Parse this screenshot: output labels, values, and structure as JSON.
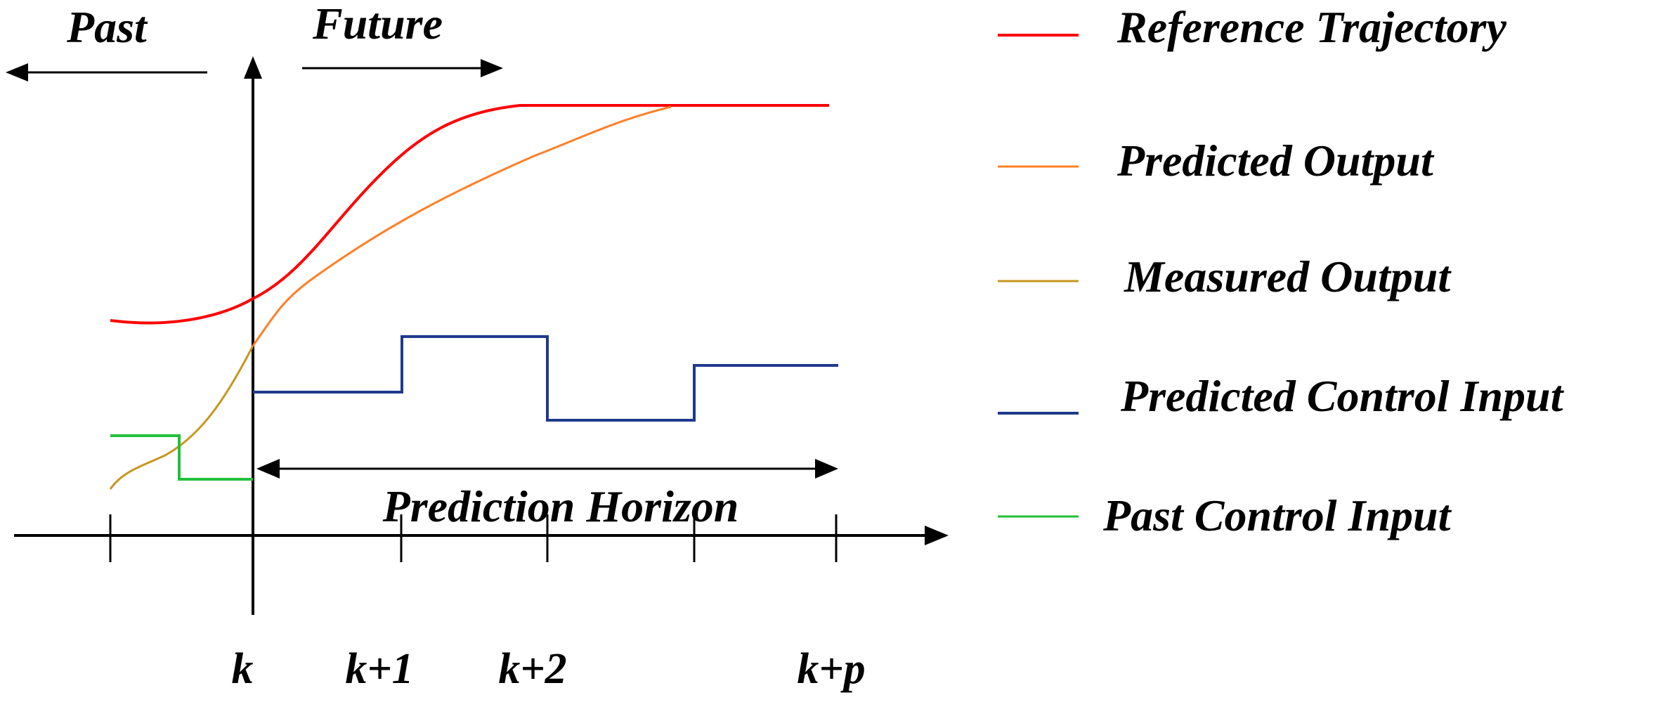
{
  "labels": {
    "past": "Past",
    "future": "Future",
    "horizon": "Prediction Horizon"
  },
  "ticks": [
    "k",
    "k+1",
    "k+2",
    "k+p"
  ],
  "legend": [
    {
      "label": "Reference Trajectory",
      "color": "#ff0000"
    },
    {
      "label": "Predicted Output",
      "color": "#ff7f27"
    },
    {
      "label": "Measured Output",
      "color": "#c8961e"
    },
    {
      "label": "Predicted Control Input",
      "color": "#1f3a8c"
    },
    {
      "label": "Past Control Input",
      "color": "#22c03a"
    }
  ]
}
